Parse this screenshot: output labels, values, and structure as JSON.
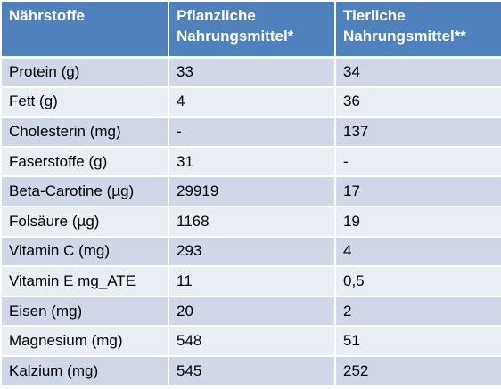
{
  "header": {
    "col1": "Nährstoffe",
    "col2_line1": "Pflanzliche",
    "col2_line2": "Nahrungsmittel*",
    "col3_line1": "Tierliche",
    "col3_line2": "Nahrungsmittel**"
  },
  "rows": [
    {
      "nutrient": "Protein (g)",
      "plant": "33",
      "animal": "34"
    },
    {
      "nutrient": "Fett (g)",
      "plant": "4",
      "animal": "36"
    },
    {
      "nutrient": "Cholesterin (mg)",
      "plant": "-",
      "animal": "137"
    },
    {
      "nutrient": "Faserstoffe (g)",
      "plant": "31",
      "animal": "-"
    },
    {
      "nutrient": "Beta-Carotine (µg)",
      "plant": "29919",
      "animal": "17"
    },
    {
      "nutrient": "Folsäure (µg)",
      "plant": "1168",
      "animal": "19"
    },
    {
      "nutrient": "Vitamin C (mg)",
      "plant": "293",
      "animal": "4"
    },
    {
      "nutrient": "Vitamin E mg_ATE",
      "plant": "11",
      "animal": "0,5"
    },
    {
      "nutrient": "Eisen (mg)",
      "plant": "20",
      "animal": "2"
    },
    {
      "nutrient": "Magnesium (mg)",
      "plant": "548",
      "animal": "51"
    },
    {
      "nutrient": "Kalzium (mg)",
      "plant": "545",
      "animal": "252"
    }
  ],
  "colors": {
    "header_bg": "#4f81bd",
    "row_odd_bg": "#d0d8e8",
    "row_even_bg": "#e9edf4",
    "grid": "#ffffff"
  }
}
